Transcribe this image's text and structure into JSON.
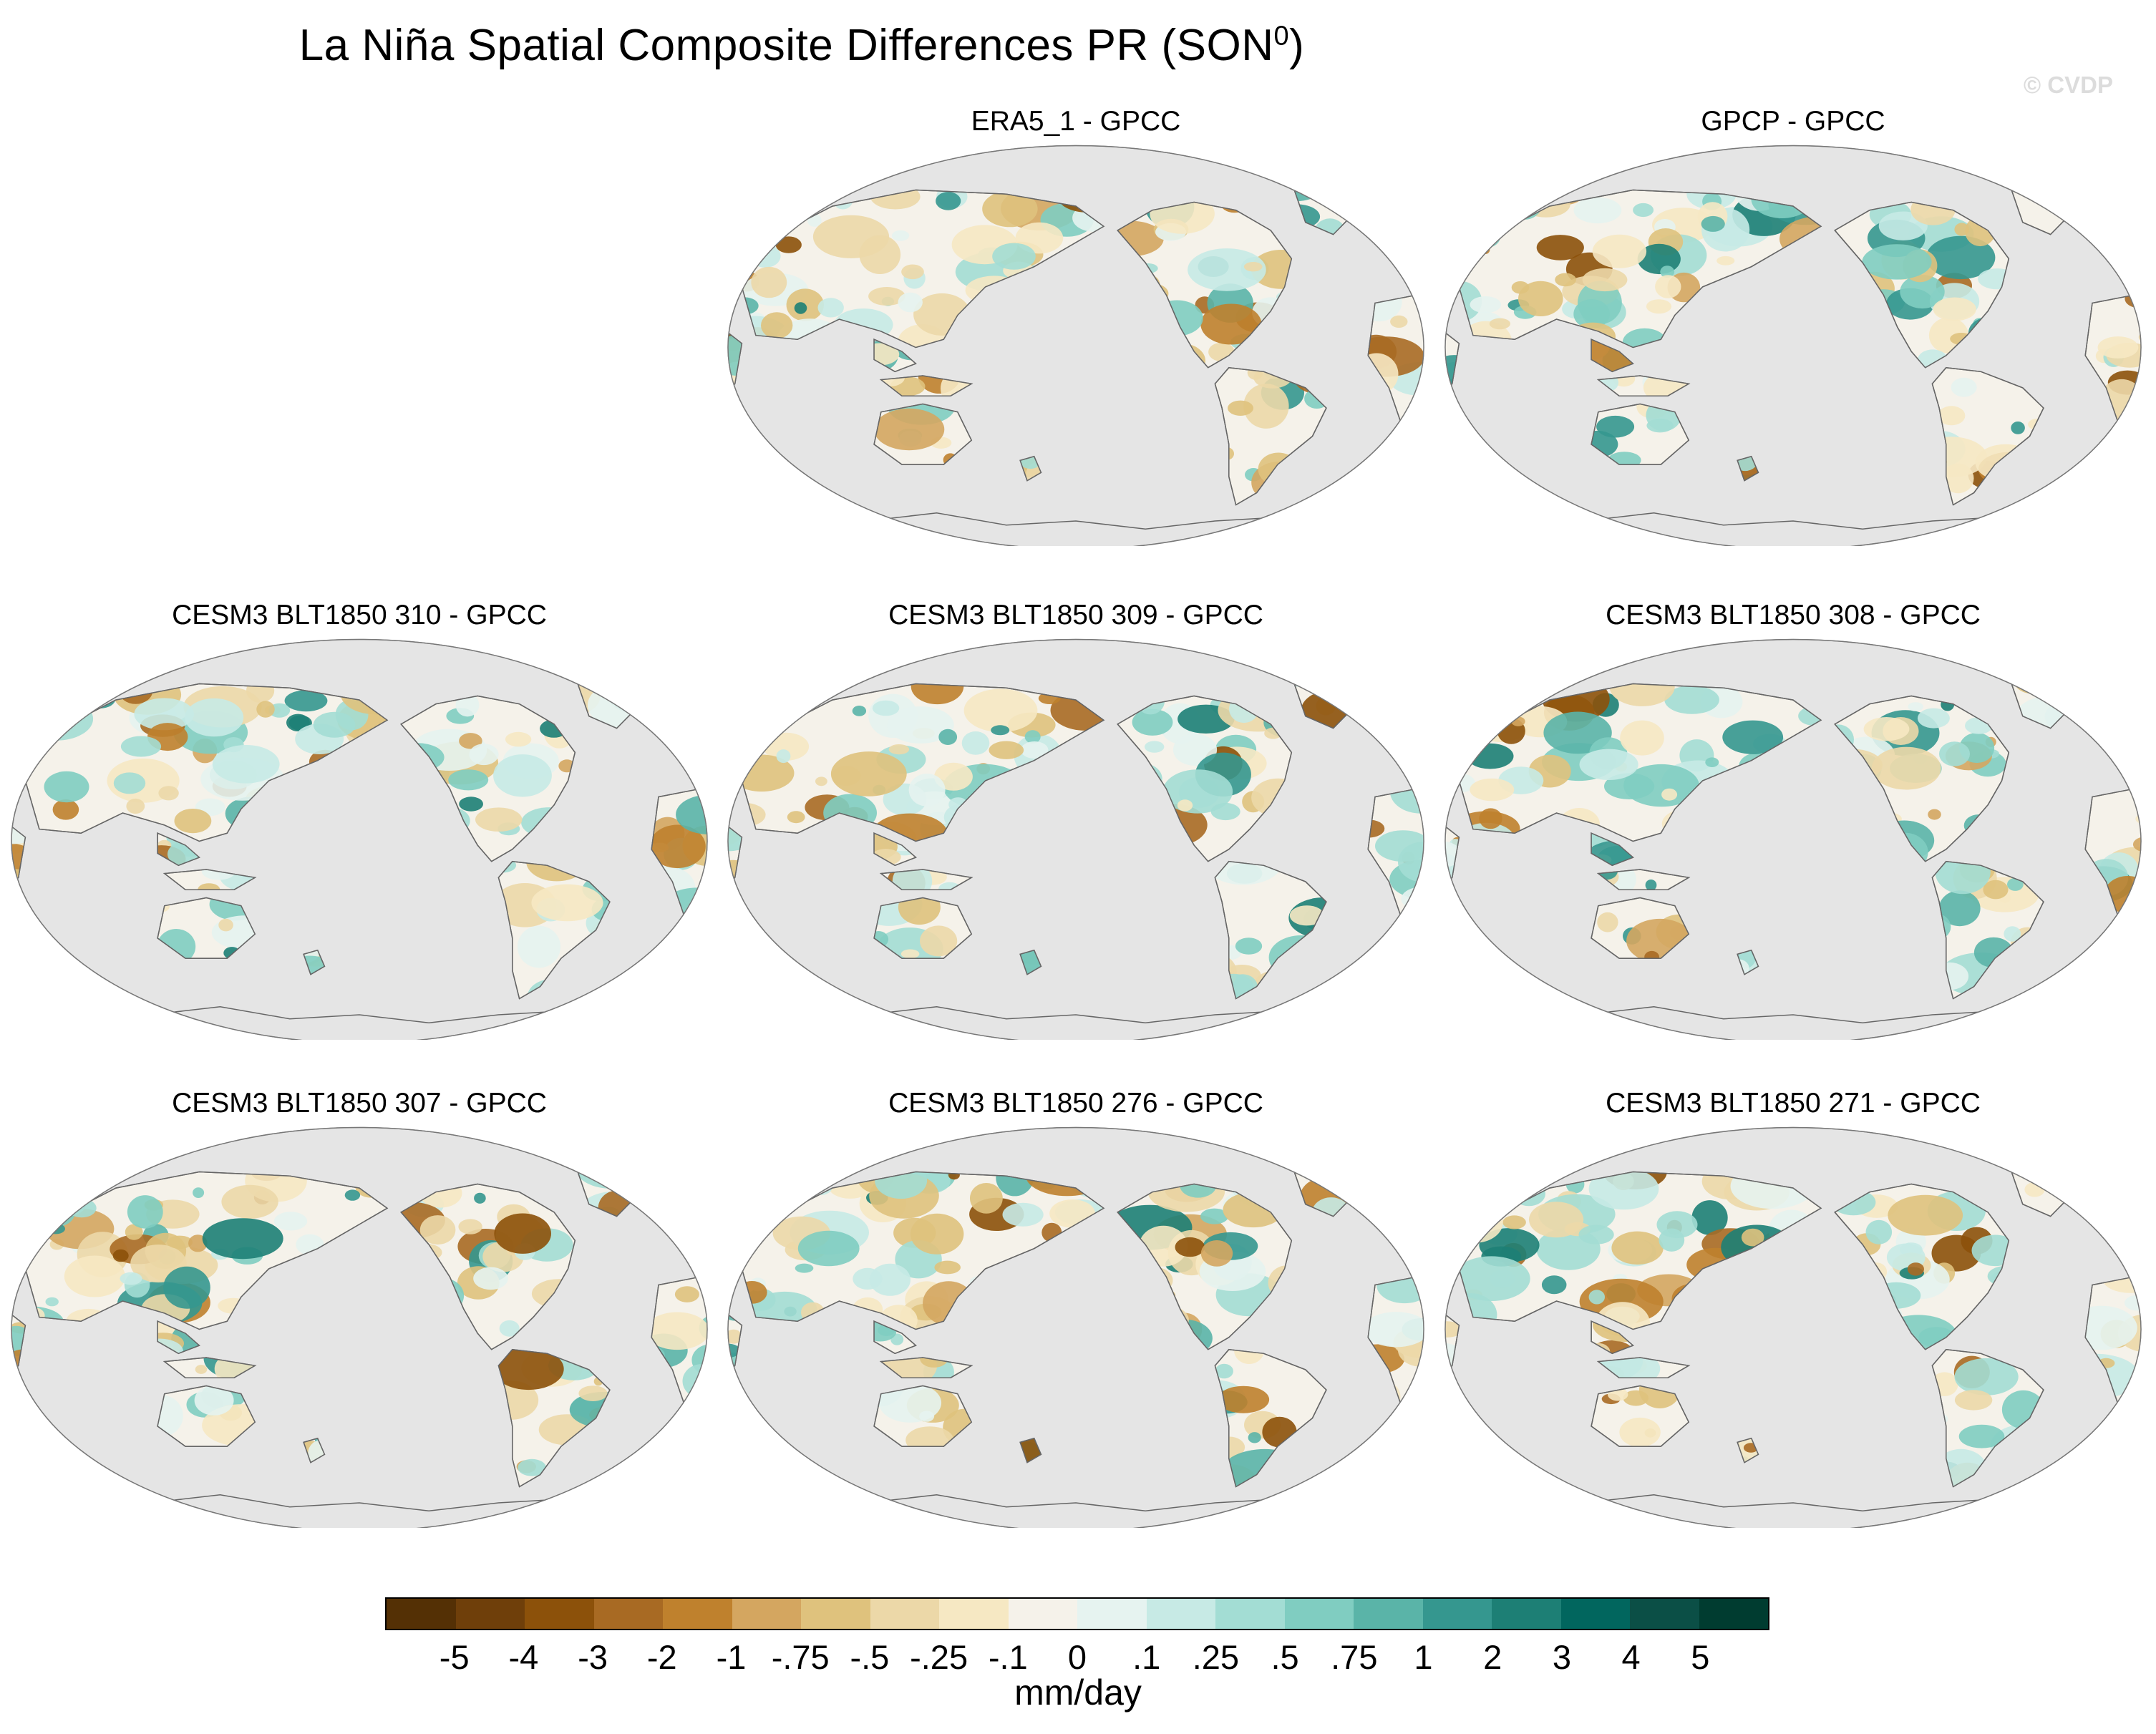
{
  "figure": {
    "title_main": "La Niña Spatial Composite Differences PR (SON",
    "title_sup": "0",
    "title_close": ")",
    "watermark": "© CVDP"
  },
  "panels": [
    {
      "label": "ERA5_1 - GPCC",
      "variant": 0
    },
    {
      "label": "GPCP - GPCC",
      "variant": 1
    },
    {
      "label": "CESM3 BLT1850 310 - GPCC",
      "variant": 2
    },
    {
      "label": "CESM3 BLT1850 309 - GPCC",
      "variant": 3
    },
    {
      "label": "CESM3 BLT1850 308 - GPCC",
      "variant": 4
    },
    {
      "label": "CESM3 BLT1850 307 - GPCC",
      "variant": 5
    },
    {
      "label": "CESM3 BLT1850 276 - GPCC",
      "variant": 6
    },
    {
      "label": "CESM3 BLT1850 271 - GPCC",
      "variant": 7
    }
  ],
  "colorbar": {
    "label": "mm/day",
    "ticks": [
      "-5",
      "-4",
      "-3",
      "-2",
      "-1",
      "-.75",
      "-.5",
      "-.25",
      "-.1",
      "0",
      ".1",
      ".25",
      ".5",
      ".75",
      "1",
      "2",
      "3",
      "4",
      "5"
    ],
    "colors": [
      "#543005",
      "#6f3f0a",
      "#8c510a",
      "#a86a23",
      "#bf812d",
      "#d4a660",
      "#dfc27d",
      "#ecd8a8",
      "#f6e8c3",
      "#f5f2ea",
      "#e6f3f0",
      "#c7eae5",
      "#a3ddd4",
      "#80cdc1",
      "#5ab4a8",
      "#35978f",
      "#1d7f75",
      "#01665e",
      "#0b4f46",
      "#003c30"
    ]
  },
  "colors": {
    "ocean": "#e5e5e5",
    "land_neutral": "#f5f2ea"
  }
}
